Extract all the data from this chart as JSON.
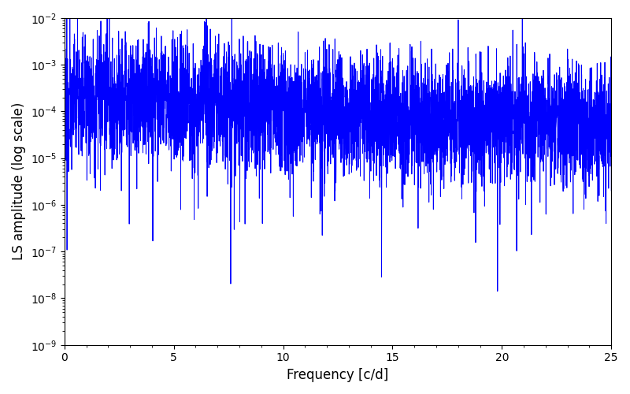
{
  "title": "",
  "xlabel": "Frequency [c/d]",
  "ylabel": "LS amplitude (log scale)",
  "line_color": "#0000ff",
  "line_width": 0.7,
  "xlim": [
    0,
    25
  ],
  "ylim_log": [
    -9,
    -2
  ],
  "figsize": [
    8.0,
    5.0
  ],
  "dpi": 100,
  "seed": 12345,
  "n_points": 5000,
  "background_color": "#ffffff"
}
